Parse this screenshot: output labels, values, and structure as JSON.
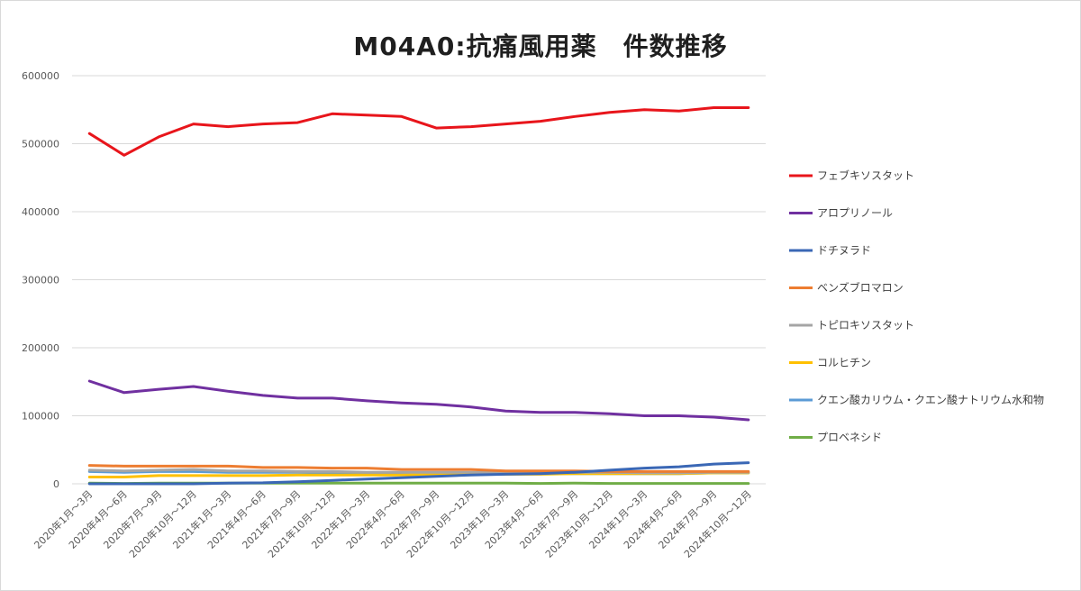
{
  "chart_data": {
    "type": "line",
    "title": "M04A0:抗痛風用薬　件数推移",
    "xlabel": "",
    "ylabel": "",
    "ylim": [
      0,
      600000
    ],
    "yticks": [
      "0",
      "100000",
      "200000",
      "300000",
      "400000",
      "500000",
      "600000"
    ],
    "grid": true,
    "legend_position": "right",
    "categories": [
      "2020年1月～3月",
      "2020年4月～6月",
      "2020年7月～9月",
      "2020年10月～12月",
      "2021年1月～3月",
      "2021年4月～6月",
      "2021年7月～9月",
      "2021年10月～12月",
      "2022年1月～3月",
      "2022年4月～6月",
      "2022年7月～9月",
      "2022年10月～12月",
      "2023年1月～3月",
      "2023年4月～6月",
      "2023年7月～9月",
      "2023年10月～12月",
      "2024年1月～3月",
      "2024年4月～6月",
      "2024年7月～9月",
      "2024年10月～12月"
    ],
    "series": [
      {
        "name": "フェブキソスタット",
        "color": "#e8151b",
        "values": [
          515000,
          483000,
          510000,
          529000,
          525000,
          529000,
          531000,
          544000,
          542000,
          540000,
          523000,
          525000,
          529000,
          533000,
          540000,
          546000,
          550000,
          548000,
          553000,
          553000
        ]
      },
      {
        "name": "アロプリノール",
        "color": "#7030a0",
        "values": [
          151000,
          134000,
          139000,
          143000,
          136000,
          130000,
          126000,
          126000,
          122000,
          119000,
          117000,
          113000,
          107000,
          105000,
          105000,
          103000,
          100000,
          100000,
          98000,
          94000
        ]
      },
      {
        "name": "ドチヌラド",
        "color": "#3a67b5",
        "values": [
          0,
          0,
          0,
          0,
          1000,
          1500,
          3000,
          5000,
          7000,
          9000,
          11000,
          13000,
          14000,
          15000,
          17000,
          20000,
          23000,
          25000,
          29000,
          31000
        ]
      },
      {
        "name": "ベンズブロマロン",
        "color": "#ed7d31",
        "values": [
          27000,
          26000,
          26000,
          26000,
          26000,
          24000,
          24000,
          23000,
          23000,
          21000,
          21000,
          21000,
          19000,
          19000,
          19000,
          18000,
          18000,
          18000,
          18000,
          18000
        ]
      },
      {
        "name": "トピロキソスタット",
        "color": "#a5a5a5",
        "values": [
          20000,
          19000,
          20000,
          21000,
          19000,
          19000,
          18000,
          18000,
          17000,
          17000,
          17000,
          17000,
          17000,
          16000,
          17000,
          17000,
          16000,
          16000,
          17000,
          17000
        ]
      },
      {
        "name": "コルヒチン",
        "color": "#ffc000",
        "values": [
          10000,
          10000,
          12000,
          12000,
          12000,
          12000,
          13000,
          13000,
          13000,
          13000,
          14000,
          14000,
          14000,
          14000,
          15000,
          15000,
          15000,
          15000,
          16000,
          16000
        ]
      },
      {
        "name": "クエン酸カリウム・クエン酸ナトリウム水和物",
        "color": "#5b9bd5",
        "values": [
          18000,
          17000,
          18000,
          18000,
          17000,
          17000,
          17000,
          16000,
          16000,
          16000,
          16000,
          16000,
          15000,
          15000,
          15000,
          15000,
          15000,
          15000,
          16000,
          16000
        ]
      },
      {
        "name": "プロベネシド",
        "color": "#70ad47",
        "values": [
          1000,
          500,
          1000,
          1000,
          1000,
          1000,
          1000,
          1000,
          1000,
          1000,
          1000,
          1000,
          1000,
          500,
          1000,
          500,
          500,
          500,
          500,
          500
        ]
      }
    ]
  }
}
